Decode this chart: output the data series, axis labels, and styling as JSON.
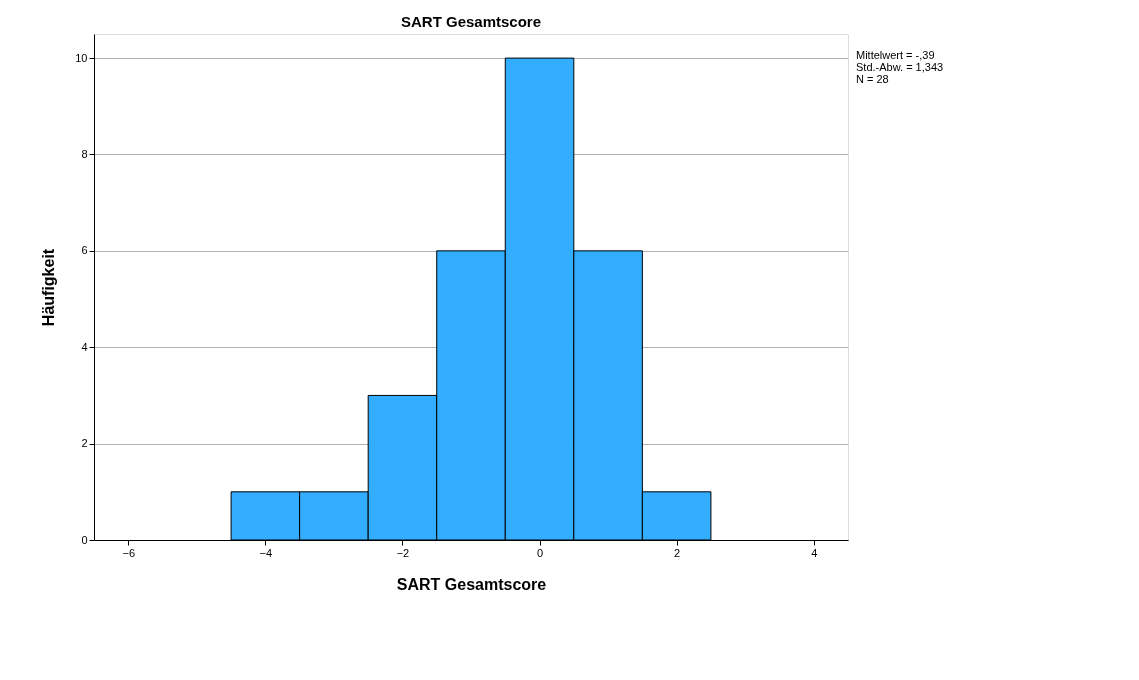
{
  "chart_data": {
    "type": "histogram",
    "title": "SART Gesamtscore",
    "xlabel": "SART Gesamtscore",
    "ylabel": "Häufigkeit",
    "bins": [
      -4.5,
      -3.5,
      -2.5,
      -1.5,
      -0.5,
      0.5,
      1.5,
      2.5
    ],
    "values": [
      1,
      1,
      3,
      6,
      10,
      6,
      1
    ],
    "color": "#33adff",
    "xlim": [
      -6.5,
      4.5
    ],
    "xticks": [
      -6,
      -4,
      -2,
      0,
      2,
      4
    ],
    "ylim": [
      0,
      10.5
    ],
    "yticks": [
      0,
      2,
      4,
      6,
      8,
      10
    ],
    "grid": "y",
    "annotations": [
      "Mittelwert = -,39",
      "Std.-Abw. = 1,343",
      "N = 28"
    ]
  }
}
